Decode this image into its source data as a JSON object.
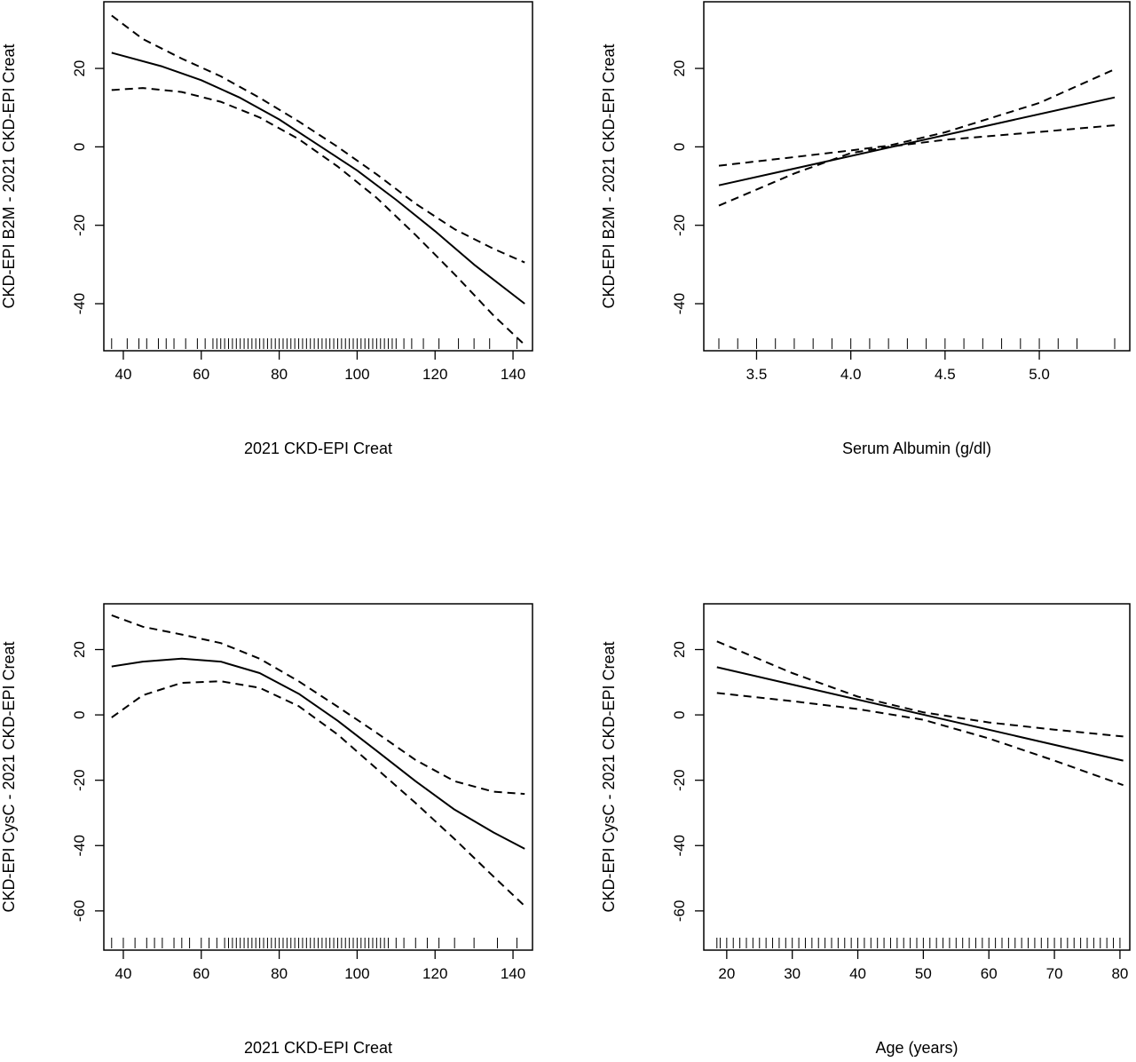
{
  "chart_data": [
    {
      "type": "line",
      "xlabel": "2021 CKD-EPI Creat",
      "ylabel": "CKD-EPI B2M - 2021 CKD-EPI Creat",
      "xlim": [
        35,
        145
      ],
      "ylim": [
        -52,
        37
      ],
      "x_ticks": [
        40,
        60,
        80,
        100,
        120,
        140
      ],
      "y_ticks": [
        -40,
        -20,
        0,
        20
      ],
      "grid": false,
      "legend": "none",
      "series": [
        {
          "role": "estimate",
          "style": "solid",
          "x": [
            37,
            50,
            60,
            70,
            80,
            90,
            100,
            110,
            120,
            130,
            143
          ],
          "y": [
            24,
            20.5,
            17,
            12.5,
            7,
            0.5,
            -6,
            -13.5,
            -21.5,
            -30,
            -40
          ]
        },
        {
          "role": "upper",
          "style": "dashed",
          "x": [
            37,
            45,
            55,
            65,
            75,
            85,
            95,
            105,
            115,
            125,
            135,
            143
          ],
          "y": [
            33.5,
            27.5,
            22.5,
            18,
            12.5,
            6.5,
            0,
            -7,
            -14.5,
            -21,
            -26,
            -29.5
          ]
        },
        {
          "role": "lower",
          "style": "dashed",
          "x": [
            37,
            45,
            55,
            65,
            75,
            85,
            95,
            105,
            115,
            125,
            135,
            143
          ],
          "y": [
            14.5,
            15,
            14,
            11.5,
            7.5,
            2,
            -5,
            -13,
            -22.5,
            -32.5,
            -43,
            -50.5
          ]
        }
      ],
      "rug": [
        37,
        41,
        44,
        46,
        49,
        51,
        53,
        56,
        59,
        61,
        63,
        64,
        65,
        66,
        67,
        68,
        69,
        70,
        71,
        72,
        73,
        74,
        75,
        76,
        77,
        78,
        79,
        80,
        81,
        82,
        83,
        84,
        85,
        86,
        87,
        88,
        89,
        90,
        91,
        92,
        93,
        94,
        95,
        96,
        97,
        98,
        99,
        100,
        101,
        102,
        103,
        104,
        105,
        106,
        107,
        108,
        109,
        110,
        112,
        114,
        117,
        121,
        126,
        130,
        134,
        141
      ]
    },
    {
      "type": "line",
      "xlabel": "Serum Albumin (g/dl)",
      "ylabel": "CKD-EPI B2M - 2021 CKD-EPI Creat",
      "xlim": [
        3.22,
        5.48
      ],
      "ylim": [
        -52,
        37
      ],
      "x_ticks": [
        3.5,
        4.0,
        4.5,
        5.0
      ],
      "x_tick_labels": [
        "3.5",
        "4.0",
        "4.5",
        "5.0"
      ],
      "y_ticks": [
        -40,
        -20,
        0,
        20
      ],
      "grid": false,
      "legend": "none",
      "series": [
        {
          "role": "estimate",
          "style": "solid",
          "x": [
            3.3,
            5.4
          ],
          "y": [
            -9.8,
            12.6
          ]
        },
        {
          "role": "upper",
          "style": "dashed",
          "x": [
            3.3,
            3.7,
            4.0,
            4.2,
            4.5,
            5.0,
            5.4
          ],
          "y": [
            -4.8,
            -2.6,
            -0.9,
            0.3,
            3.7,
            11.2,
            19.8
          ]
        },
        {
          "role": "lower",
          "style": "dashed",
          "x": [
            3.3,
            3.7,
            4.0,
            4.2,
            4.5,
            5.0,
            5.4
          ],
          "y": [
            -15,
            -6.8,
            -1.6,
            0.0,
            1.8,
            3.8,
            5.5
          ]
        }
      ],
      "rug": [
        3.3,
        3.4,
        3.5,
        3.6,
        3.7,
        3.8,
        3.9,
        4.0,
        4.1,
        4.2,
        4.3,
        4.4,
        4.5,
        4.6,
        4.7,
        4.8,
        4.9,
        5.0,
        5.1,
        5.2,
        5.4
      ]
    },
    {
      "type": "line",
      "xlabel": "2021 CKD-EPI Creat",
      "ylabel": "CKD-EPI CysC - 2021 CKD-EPI Creat",
      "xlim": [
        35,
        145
      ],
      "ylim": [
        -72,
        34
      ],
      "x_ticks": [
        40,
        60,
        80,
        100,
        120,
        140
      ],
      "y_ticks": [
        -60,
        -40,
        -20,
        0,
        20
      ],
      "grid": false,
      "legend": "none",
      "series": [
        {
          "role": "estimate",
          "style": "solid",
          "x": [
            37,
            45,
            55,
            65,
            75,
            85,
            95,
            105,
            115,
            125,
            135,
            143
          ],
          "y": [
            14.8,
            16.3,
            17.2,
            16.3,
            12.8,
            6.5,
            -1.8,
            -11,
            -20.3,
            -29,
            -36,
            -41
          ]
        },
        {
          "role": "upper",
          "style": "dashed",
          "x": [
            37,
            45,
            55,
            65,
            75,
            85,
            95,
            105,
            115,
            125,
            135,
            143
          ],
          "y": [
            30.5,
            27,
            24.6,
            22,
            17.2,
            10.3,
            2.5,
            -5.5,
            -13.8,
            -20.3,
            -23.5,
            -24.2
          ]
        },
        {
          "role": "lower",
          "style": "dashed",
          "x": [
            37,
            45,
            55,
            65,
            75,
            85,
            95,
            105,
            115,
            125,
            135,
            143
          ],
          "y": [
            -0.8,
            6,
            9.8,
            10.3,
            8.3,
            2.7,
            -6,
            -16.5,
            -27,
            -38,
            -49.5,
            -58.5
          ]
        }
      ],
      "rug": [
        37,
        40,
        43,
        46,
        48,
        50,
        53,
        55,
        57,
        60,
        62,
        64,
        66,
        67,
        68,
        69,
        70,
        71,
        72,
        73,
        74,
        75,
        76,
        77,
        78,
        79,
        80,
        81,
        82,
        83,
        84,
        85,
        86,
        87,
        88,
        89,
        90,
        91,
        92,
        93,
        94,
        95,
        96,
        97,
        98,
        99,
        100,
        101,
        102,
        103,
        104,
        105,
        106,
        107,
        108,
        110,
        112,
        115,
        118,
        121,
        125,
        130,
        136,
        141
      ]
    },
    {
      "type": "line",
      "xlabel": "Age (years)",
      "ylabel": "CKD-EPI CysC - 2021 CKD-EPI Creat",
      "xlim": [
        16.5,
        81.5
      ],
      "ylim": [
        -72,
        34
      ],
      "x_ticks": [
        20,
        30,
        40,
        50,
        60,
        70,
        80
      ],
      "y_ticks": [
        -60,
        -40,
        -20,
        0,
        20
      ],
      "grid": false,
      "legend": "none",
      "series": [
        {
          "role": "estimate",
          "style": "solid",
          "x": [
            18.5,
            80.5
          ],
          "y": [
            14.6,
            -14
          ]
        },
        {
          "role": "upper",
          "style": "dashed",
          "x": [
            18.5,
            30,
            40,
            50,
            60,
            70,
            80.5
          ],
          "y": [
            22.5,
            12.8,
            5.6,
            0.8,
            -2.3,
            -4.5,
            -6.6
          ]
        },
        {
          "role": "lower",
          "style": "dashed",
          "x": [
            18.5,
            30,
            40,
            50,
            60,
            70,
            80.5
          ],
          "y": [
            6.7,
            4.2,
            1.8,
            -1.5,
            -7.2,
            -14,
            -21.5
          ]
        }
      ],
      "rug": [
        18.5,
        19,
        20,
        21,
        22,
        23,
        24,
        25,
        26,
        27,
        28,
        29,
        30,
        31,
        32,
        33,
        34,
        35,
        36,
        37,
        38,
        39,
        40,
        41,
        42,
        43,
        44,
        45,
        46,
        47,
        48,
        49,
        50,
        51,
        52,
        53,
        54,
        55,
        56,
        57,
        58,
        59,
        60,
        61,
        62,
        63,
        64,
        65,
        66,
        67,
        68,
        69,
        70,
        71,
        72,
        73,
        74,
        75,
        76,
        77,
        78,
        79,
        80
      ]
    }
  ]
}
